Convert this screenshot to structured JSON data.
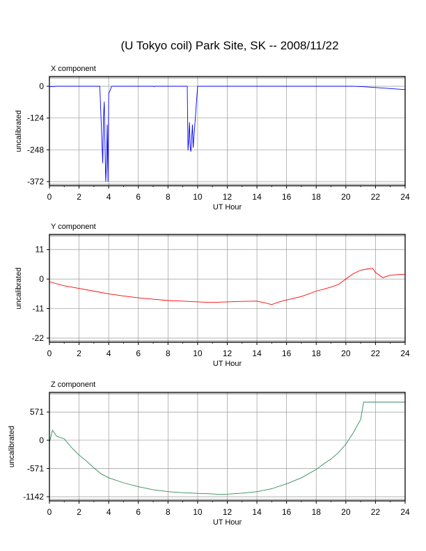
{
  "title": "(U Tokyo coil) Park Site, SK -- 2008/11/22",
  "chart_data": [
    {
      "type": "line",
      "title": "X component",
      "xlabel": "UT Hour",
      "ylabel": "uncalibrated",
      "xlim": [
        0,
        24
      ],
      "ylim": [
        -372,
        0
      ],
      "xticks": [
        0,
        2,
        4,
        6,
        8,
        10,
        12,
        14,
        16,
        18,
        20,
        22,
        24
      ],
      "yticks": [
        0,
        -124,
        -248,
        -372
      ],
      "grid": true,
      "color": "#0000ff",
      "series": [
        {
          "x": [
            0,
            0.5,
            1,
            1.5,
            2,
            2.5,
            3,
            3.4,
            3.6,
            3.65,
            3.7,
            3.75,
            3.8,
            3.85,
            3.9,
            3.95,
            4.0,
            4.2,
            5,
            6,
            7,
            7.05,
            7.1,
            8,
            9,
            9.3,
            9.35,
            9.4,
            9.45,
            9.5,
            9.55,
            9.6,
            9.65,
            9.7,
            10,
            11,
            12,
            13,
            14,
            15,
            16,
            17,
            18,
            19,
            20,
            20.5,
            21,
            21.5,
            22,
            22.5,
            23,
            23.5,
            24
          ],
          "y": [
            -2,
            0,
            1,
            2,
            2,
            3,
            4,
            4,
            -300,
            -120,
            -60,
            -230,
            -372,
            -300,
            -150,
            -372,
            -30,
            4,
            5,
            5,
            5,
            -2,
            5,
            6,
            7,
            6,
            -250,
            -210,
            -140,
            -240,
            -255,
            -200,
            -150,
            -240,
            9,
            10,
            11,
            12,
            12,
            13,
            12,
            11,
            10,
            8,
            5,
            2,
            -1,
            -3,
            -5,
            -7,
            -9,
            -11,
            -13
          ]
        }
      ]
    },
    {
      "type": "line",
      "title": "Y component",
      "xlabel": "UT Hour",
      "ylabel": "uncalibrated",
      "xlim": [
        0,
        24
      ],
      "ylim": [
        -22,
        13
      ],
      "xticks": [
        0,
        2,
        4,
        6,
        8,
        10,
        12,
        14,
        16,
        18,
        20,
        22,
        24
      ],
      "yticks": [
        11,
        0,
        -11,
        -22
      ],
      "grid": true,
      "color": "#ff0000",
      "series": [
        {
          "x": [
            0,
            1,
            2,
            3,
            4,
            5,
            6,
            7,
            8,
            9,
            10,
            11,
            12,
            13,
            14,
            14.5,
            15,
            15.5,
            16,
            17,
            18,
            19,
            19.5,
            20,
            20.5,
            21,
            21.5,
            21.8,
            22,
            22.5,
            23,
            24
          ],
          "y": [
            -1,
            -2.5,
            -3.5,
            -4.5,
            -5.5,
            -6.3,
            -7,
            -7.5,
            -8,
            -8.2,
            -8.5,
            -8.7,
            -8.5,
            -8.3,
            -8.2,
            -8.8,
            -9.5,
            -8.5,
            -7.8,
            -6.5,
            -4.5,
            -3,
            -2,
            0,
            2,
            3.3,
            3.8,
            4,
            2.5,
            0.5,
            1.5,
            1.8
          ]
        }
      ]
    },
    {
      "type": "line",
      "title": "Z component",
      "xlabel": "UT Hour",
      "ylabel": "uncalibrated",
      "xlim": [
        0,
        24
      ],
      "ylim": [
        -1142,
        771
      ],
      "xticks": [
        0,
        2,
        4,
        6,
        8,
        10,
        12,
        14,
        16,
        18,
        20,
        22,
        24
      ],
      "yticks": [
        571,
        0,
        -571,
        -1142
      ],
      "grid": true,
      "color": "#2e8b57",
      "series": [
        {
          "x": [
            0,
            0.2,
            0.5,
            1,
            1.5,
            2,
            2.5,
            3,
            3.5,
            4,
            5,
            6,
            7,
            8,
            9,
            10,
            11,
            11.5,
            12,
            13,
            14,
            15,
            16,
            17,
            18,
            18.5,
            19,
            19.5,
            20,
            20.5,
            21,
            21.2,
            22,
            23,
            24
          ],
          "y": [
            -50,
            200,
            80,
            30,
            -150,
            -300,
            -420,
            -560,
            -680,
            -760,
            -860,
            -940,
            -1000,
            -1040,
            -1060,
            -1075,
            -1085,
            -1095,
            -1090,
            -1070,
            -1040,
            -980,
            -880,
            -760,
            -590,
            -480,
            -380,
            -250,
            -80,
            150,
            420,
            771,
            771,
            771,
            771
          ]
        }
      ]
    }
  ]
}
